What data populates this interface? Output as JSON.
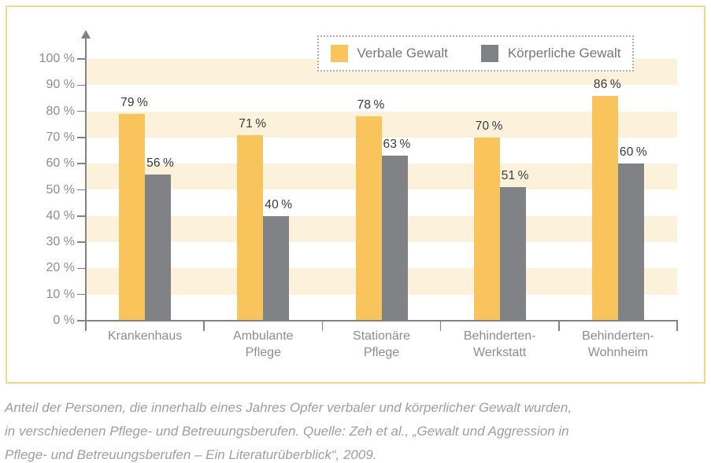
{
  "chart_data": {
    "type": "bar",
    "title": "",
    "categories": [
      "Krankenhaus",
      "Ambulante Pflege",
      "Stationäre Pflege",
      "Behinderten-Werkstatt",
      "Behinderten-Wohnheim"
    ],
    "categories_lines": [
      [
        "Krankenhaus"
      ],
      [
        "Ambulante",
        "Pflege"
      ],
      [
        "Stationäre",
        "Pflege"
      ],
      [
        "Behinderten-",
        "Werkstatt"
      ],
      [
        "Behinderten-",
        "Wohnheim"
      ]
    ],
    "series": [
      {
        "name": "Verbale Gewalt",
        "color": "#F9C45C",
        "values": [
          79,
          71,
          78,
          70,
          86
        ],
        "labels": [
          "79 %",
          "71 %",
          "78 %",
          "70 %",
          "86 %"
        ]
      },
      {
        "name": "Körperliche Gewalt",
        "color": "#808285",
        "values": [
          56,
          40,
          63,
          51,
          60
        ],
        "labels": [
          "56 %",
          "40 %",
          "63 %",
          "51 %",
          "60 %"
        ]
      }
    ],
    "xlabel": "",
    "ylabel": "",
    "ylim": [
      0,
      100
    ],
    "ytick_step": 10,
    "ytick_labels": [
      "0 %",
      "10 %",
      "20 %",
      "30 %",
      "40 %",
      "50 %",
      "60 %",
      "70 %",
      "80 %",
      "90 %",
      "100 %"
    ],
    "grid": "horizontal cream stripes on alternate 10%-bands (90-100, 70-80, 50-60, 30-40, 10-20)",
    "legend_position": "top-center"
  },
  "legend": {
    "items": [
      {
        "label": "Verbale Gewalt",
        "color": "#F9C45C"
      },
      {
        "label": "Körperliche Gewalt",
        "color": "#808285"
      }
    ]
  },
  "caption": {
    "lines": [
      "Anteil der Personen, die innerhalb eines Jahres Opfer verbaler und körperlicher Gewalt wurden,",
      "in verschiedenen Pflege- und Betreuungsberufen. Quelle: Zeh et al., „Gewalt und Aggression in",
      "Pflege- und Betreuungsberufen – Ein Literaturüberblick“, 2009."
    ]
  },
  "colors": {
    "accent_yellow": "#F9C45C",
    "bar_gray": "#808285",
    "stripe_cream": "#FCF2DC",
    "frame_border": "#F0D88A",
    "axis_gray": "#808285",
    "tick_label_gray": "#8B8D90",
    "value_label_dark": "#3A3A3C",
    "legend_border_gray": "#ABADB0",
    "caption_gray": "#9C9EA1"
  }
}
